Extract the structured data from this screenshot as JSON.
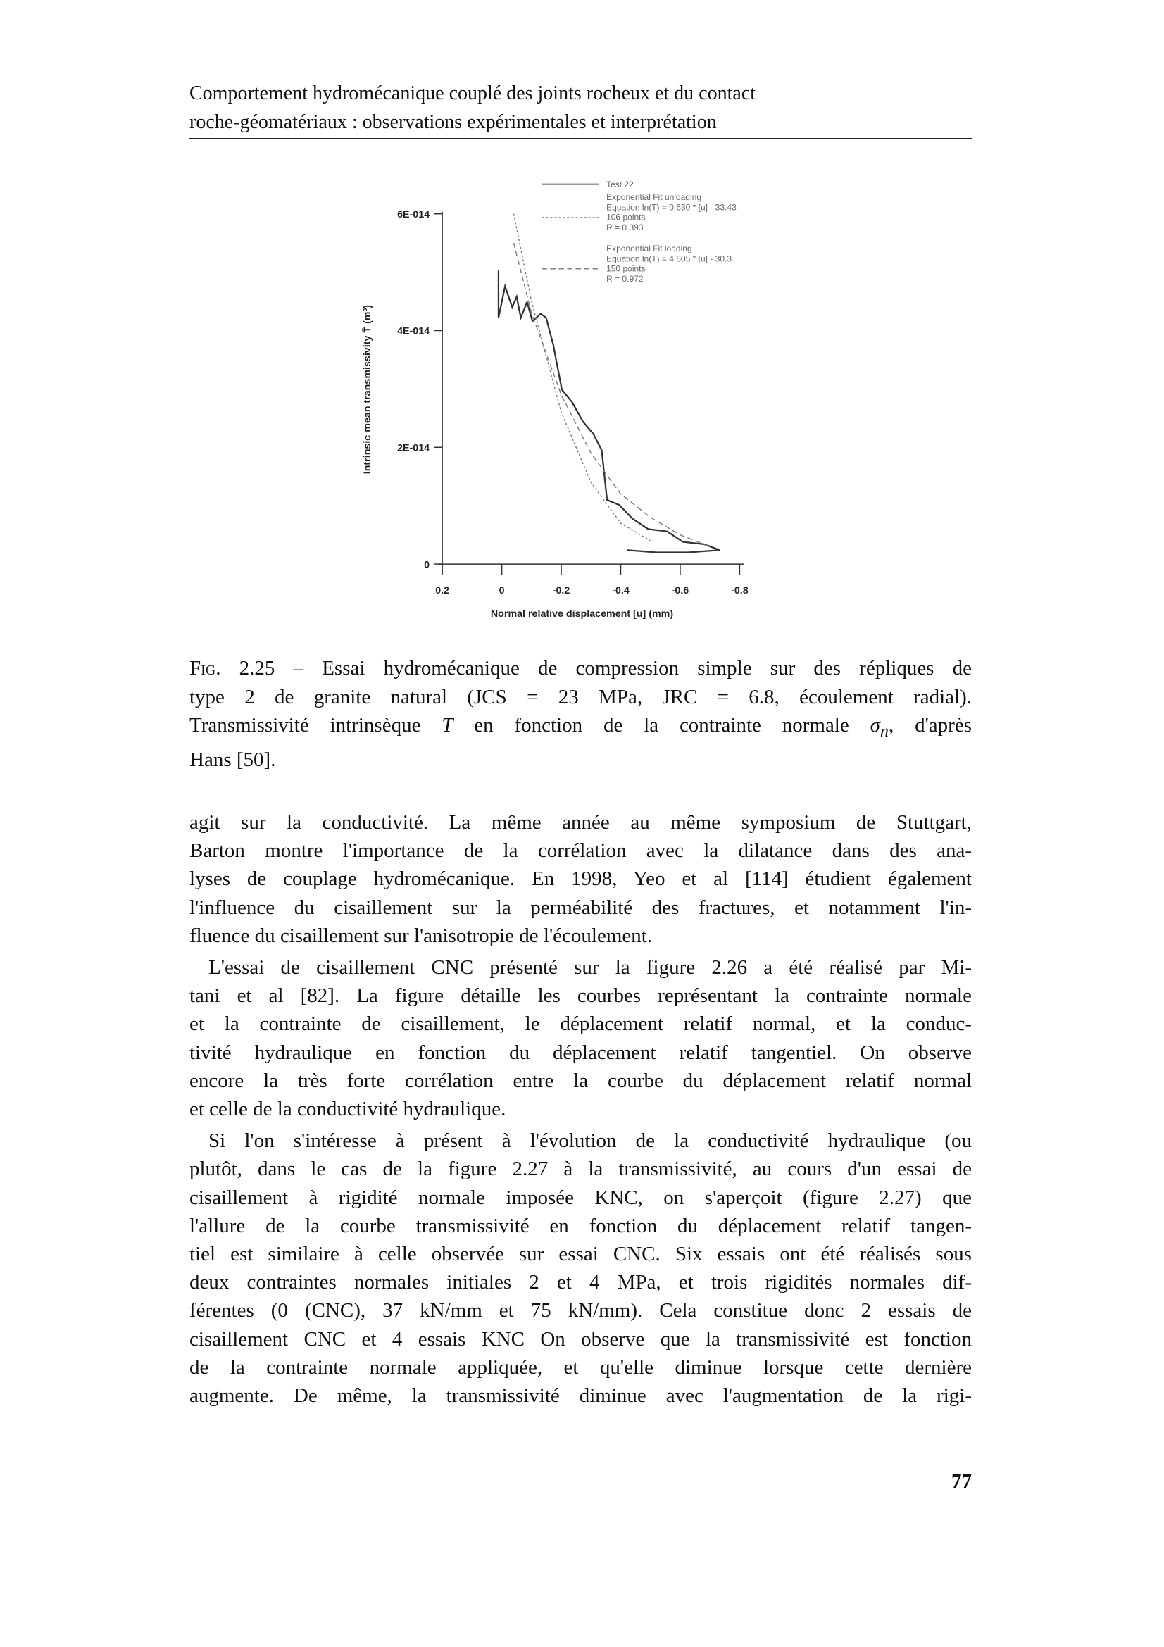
{
  "header": {
    "lines": [
      "Comportement hydromécanique couplé des joints rocheux et du contact",
      "roche-géomatériaux : observations expérimentales et interprétation"
    ]
  },
  "chart_data": {
    "type": "line",
    "y_label": "Intrinsic mean transmissivity T̄ (m³)",
    "x_label": "Normal relative displacement [u] (mm)",
    "xlim": [
      0.2,
      -0.8
    ],
    "xticks": [
      0.2,
      0,
      -0.2,
      -0.4,
      -0.6,
      -0.8
    ],
    "ylim": [
      0,
      6e-14
    ],
    "yticks": [
      0,
      {
        "value": 2e-14,
        "label": "2E-014"
      },
      {
        "value": 4e-14,
        "label": "4E-014"
      },
      {
        "value": 6e-14,
        "label": "6E-014"
      }
    ],
    "legend": "upper right",
    "series": [
      {
        "name": "Test 22",
        "color": "#333333",
        "line_style": "solid",
        "details": [],
        "x": [
          0.011,
          0.011,
          -0.011,
          -0.035,
          -0.05,
          -0.064,
          -0.085,
          -0.103,
          -0.131,
          -0.149,
          -0.173,
          -0.202,
          -0.237,
          -0.273,
          -0.308,
          -0.336,
          -0.354,
          -0.396,
          -0.439,
          -0.492,
          -0.556,
          -0.609,
          -0.68,
          -0.733,
          -0.627,
          -0.52,
          -0.421
        ],
        "values": [
          5.03e-14,
          4.22e-14,
          4.76e-14,
          4.4e-14,
          4.58e-14,
          4.22e-14,
          4.49e-14,
          4.16e-14,
          4.29e-14,
          4.22e-14,
          3.76e-14,
          2.99e-14,
          2.77e-14,
          2.44e-14,
          2.23e-14,
          1.95e-14,
          1.1e-14,
          1.01e-14,
          7.8e-15,
          6e-15,
          5.6e-15,
          3.8e-15,
          3.4e-15,
          2.4e-15,
          2e-15,
          2e-15,
          2.4e-15
        ]
      },
      {
        "name": "Exponential Fit unloading",
        "color": "#777777",
        "line_style": "dotted",
        "details": [
          "Equation ln(T) = 0.630 * [u] - 33.43",
          "106 points",
          "R = 0.393"
        ],
        "x": [
          -0.04,
          -0.1,
          -0.2,
          -0.3,
          -0.4,
          -0.5
        ],
        "values": [
          6e-14,
          4.5e-14,
          2.6e-14,
          1.4e-14,
          7e-15,
          4e-15
        ]
      },
      {
        "name": "Exponential Fit loading",
        "color": "#777777",
        "line_style": "dashed",
        "details": [
          "Equation ln(T) = 4.605 * [u] - 30.3",
          "150 points",
          "R = 0.972"
        ],
        "x": [
          -0.04,
          -0.1,
          -0.2,
          -0.3,
          -0.4,
          -0.5,
          -0.6,
          -0.7
        ],
        "values": [
          5.5e-14,
          4.3e-14,
          2.9e-14,
          1.9e-14,
          1.2e-14,
          8e-15,
          5e-15,
          3e-15
        ]
      }
    ]
  },
  "caption": {
    "lines": [
      [
        {
          "smallcaps": "Fig."
        },
        {
          "text": " 2.25 – Essai hydromécanique de compression simple sur des répliques de"
        }
      ],
      [
        {
          "text": "type 2 de granite natural (JCS = 23 MPa, JRC = 6.8, écoulement radial)."
        }
      ],
      [
        {
          "text": "Transmissivité intrinsèque "
        },
        {
          "math": "T"
        },
        {
          "text": " en fonction de la contrainte normale "
        },
        {
          "math": "σ",
          "sub": "n"
        },
        {
          "text": ", d'après"
        }
      ],
      [
        {
          "text": "Hans [50]."
        }
      ]
    ]
  },
  "body": {
    "paragraphs": [
      [
        "agit sur la conductivité. La même année au même symposium de Stuttgart,",
        "Barton montre l'importance de la corrélation avec la dilatance dans des ana-",
        "lyses de couplage hydromécanique. En 1998, Yeo et al [114] étudient également",
        "l'influence du cisaillement sur la perméabilité des fractures, et notamment l'in-",
        "fluence du cisaillement sur l'anisotropie de l'écoulement."
      ],
      [
        "L'essai de cisaillement CNC présenté sur la figure 2.26 a été réalisé par Mi-",
        "tani et al [82]. La figure détaille les courbes représentant la contrainte normale",
        "et la contrainte de cisaillement, le déplacement relatif normal, et la conduc-",
        "tivité hydraulique en fonction du déplacement relatif tangentiel. On observe",
        "encore la très forte corrélation entre la courbe du déplacement relatif normal",
        "et celle de la conductivité hydraulique."
      ],
      [
        "Si l'on s'intéresse à présent à l'évolution de la conductivité hydraulique (ou",
        "plutôt, dans le cas de la figure 2.27 à la transmissivité, au cours d'un essai de",
        "cisaillement à rigidité normale imposée KNC, on s'aperçoit (figure 2.27) que",
        "l'allure de la courbe transmissivité en fonction du déplacement relatif tangen-",
        "tiel est similaire à celle observée sur essai CNC. Six essais ont été réalisés sous",
        "deux contraintes normales initiales 2 et 4 MPa, et trois rigidités normales dif-",
        "férentes (0 (CNC), 37 kN/mm et 75 kN/mm). Cela constitue donc 2 essais de",
        "cisaillement CNC et 4 essais KNC On observe que la transmissivité est fonction",
        "de la contrainte normale appliquée, et qu'elle diminue lorsque cette dernière",
        "augmente. De même, la transmissivité diminue avec l'augmentation de la rigi-"
      ]
    ]
  },
  "page_number": "77"
}
